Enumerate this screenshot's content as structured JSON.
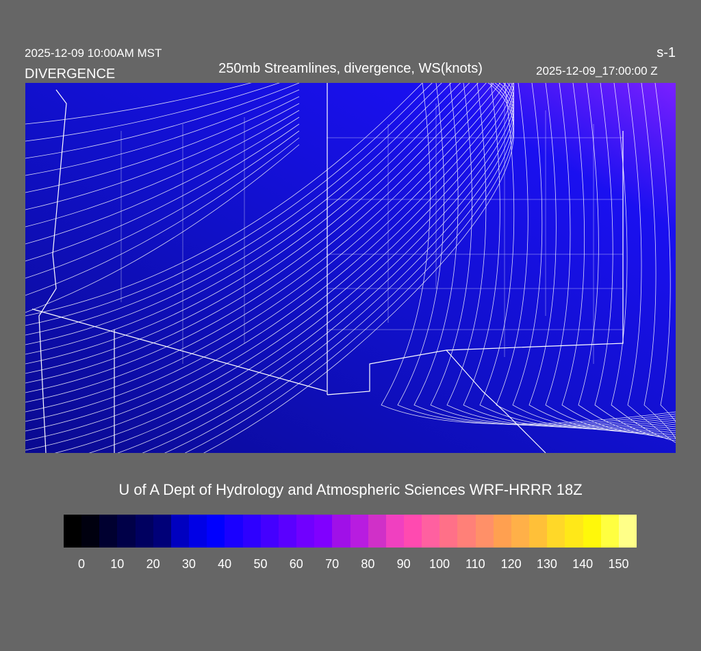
{
  "header": {
    "title": "250mb Streamlines, divergence, WS(knots)",
    "local_time": "2025-12-09 10:00AM MST",
    "field_label": "DIVERGENCE",
    "valid_time": "2025-12-09_17:00:00 Z",
    "units": "s-1"
  },
  "credit": "U of A Dept of Hydrology and Atmospheric Sciences WRF-HRRR 18Z",
  "colorbar": {
    "colors": [
      "#000000",
      "#00000f",
      "#000030",
      "#000048",
      "#000060",
      "#000078",
      "#0000c0",
      "#0000e6",
      "#0000ff",
      "#1a00ff",
      "#2e00ff",
      "#4400ff",
      "#5a00ff",
      "#7000ff",
      "#8000ff",
      "#a010e8",
      "#b81ce0",
      "#d030c8",
      "#f040c0",
      "#ff4ab0",
      "#ff60a0",
      "#ff7088",
      "#ff8078",
      "#ff9068",
      "#ffa050",
      "#ffb048",
      "#ffc038",
      "#ffd828",
      "#ffe818",
      "#fff80a",
      "#ffff40",
      "#ffff88"
    ],
    "last_color": "#ffffff",
    "labels": [
      "0",
      "10",
      "20",
      "30",
      "40",
      "50",
      "60",
      "70",
      "80",
      "90",
      "100",
      "110",
      "120",
      "130",
      "140",
      "150"
    ]
  },
  "map": {
    "background_colors": [
      "#0a0a8a",
      "#1010d8",
      "#3a10ff",
      "#7a20ff"
    ],
    "line_color": "#ffffff"
  }
}
